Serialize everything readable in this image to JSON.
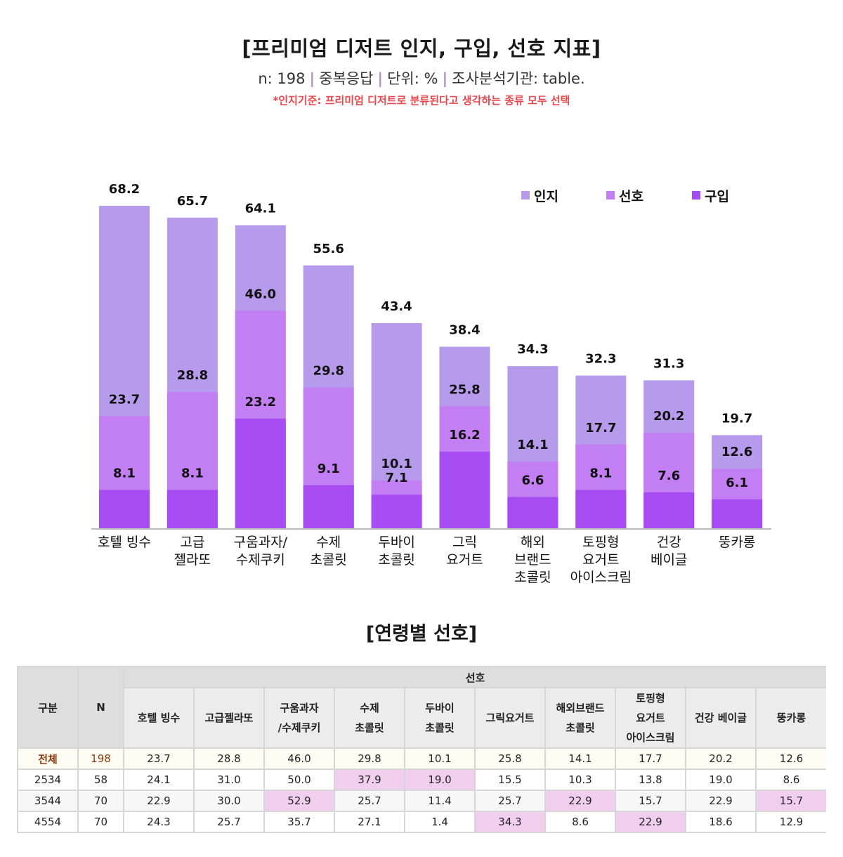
{
  "header": {
    "title": "[프리미엄 디저트 인지, 구입, 선호 지표]",
    "subtitle_parts": [
      "n: 198",
      "중복응답",
      "단위: %",
      "조사분석기관: table."
    ],
    "separator": "|",
    "note": "*인지기준: 프리미엄 디저트로 분류된다고 생각하는 종류 모두 선택"
  },
  "colors": {
    "인지": "#B69AEC",
    "선호": "#C27EF2",
    "구입": "#A64CF2",
    "highlight": "#F1CDEE"
  },
  "chart_data": {
    "type": "bar",
    "mode": "overlapped",
    "title": "[프리미엄 디저트 인지, 구입, 선호 지표]",
    "xlabel": "",
    "ylabel": "",
    "unit": "%",
    "ylim": [
      0,
      70
    ],
    "grid": false,
    "legend_position": "top-right",
    "categories": [
      [
        "호텔 빙수"
      ],
      [
        "고급",
        "젤라또"
      ],
      [
        "구움과자/",
        "수제쿠키"
      ],
      [
        "수제",
        "초콜릿"
      ],
      [
        "두바이",
        "초콜릿"
      ],
      [
        "그릭",
        "요거트"
      ],
      [
        "해외",
        "브랜드",
        "초콜릿"
      ],
      [
        "토핑형",
        "요거트",
        "아이스크림"
      ],
      [
        "건강",
        "베이글"
      ],
      [
        "뚱카롱"
      ]
    ],
    "series": [
      {
        "name": "인지",
        "values": [
          68.2,
          65.7,
          64.1,
          55.6,
          43.4,
          38.4,
          34.3,
          32.3,
          31.3,
          19.7
        ]
      },
      {
        "name": "선호",
        "values": [
          23.7,
          28.8,
          46.0,
          29.8,
          10.1,
          25.8,
          14.1,
          17.7,
          20.2,
          12.6
        ]
      },
      {
        "name": "구입",
        "values": [
          8.1,
          8.1,
          23.2,
          9.1,
          7.1,
          16.2,
          6.6,
          8.1,
          7.6,
          6.1
        ]
      }
    ],
    "labels": [
      [
        "68.2",
        "23.7",
        "8.1"
      ],
      [
        "65.7",
        "28.8",
        "8.1"
      ],
      [
        "64.1",
        "46.0",
        "23.2"
      ],
      [
        "55.6",
        "29.8",
        "9.1"
      ],
      [
        "43.4",
        "10.1",
        "7.1"
      ],
      [
        "38.4",
        "25.8",
        "16.2"
      ],
      [
        "34.3",
        "14.1",
        "6.6"
      ],
      [
        "32.3",
        "17.7",
        "8.1"
      ],
      [
        "31.3",
        "20.2",
        "7.6"
      ],
      [
        "19.7",
        "12.6",
        "6.1"
      ]
    ]
  },
  "age_table": {
    "title": "[연령별 선호]",
    "col_group": "구분",
    "col_n": "N",
    "group_header": "선호",
    "columns": [
      [
        "호텔 빙수"
      ],
      [
        "고급젤라또"
      ],
      [
        "구움과자",
        "/수제쿠키"
      ],
      [
        "수제",
        "초콜릿"
      ],
      [
        "두바이",
        "초콜릿"
      ],
      [
        "그릭요거트"
      ],
      [
        "해외브랜드",
        "초콜릿"
      ],
      [
        "토핑형",
        "요거트",
        "아이스크림"
      ],
      [
        "건강 베이글"
      ],
      [
        "뚱카롱"
      ]
    ],
    "rows": [
      {
        "label": "전체",
        "n": "198",
        "values": [
          "23.7",
          "28.8",
          "46.0",
          "29.8",
          "10.1",
          "25.8",
          "14.1",
          "17.7",
          "20.2",
          "12.6"
        ],
        "highlight": []
      },
      {
        "label": "2534",
        "n": "58",
        "values": [
          "24.1",
          "31.0",
          "50.0",
          "37.9",
          "19.0",
          "15.5",
          "10.3",
          "13.8",
          "19.0",
          "8.6"
        ],
        "highlight": [
          3,
          4
        ]
      },
      {
        "label": "3544",
        "n": "70",
        "values": [
          "22.9",
          "30.0",
          "52.9",
          "25.7",
          "11.4",
          "25.7",
          "22.9",
          "15.7",
          "22.9",
          "15.7"
        ],
        "highlight": [
          2,
          6,
          9
        ]
      },
      {
        "label": "4554",
        "n": "70",
        "values": [
          "24.3",
          "25.7",
          "35.7",
          "27.1",
          "1.4",
          "34.3",
          "8.6",
          "22.9",
          "18.6",
          "12.9"
        ],
        "highlight": [
          5,
          7
        ]
      }
    ]
  }
}
